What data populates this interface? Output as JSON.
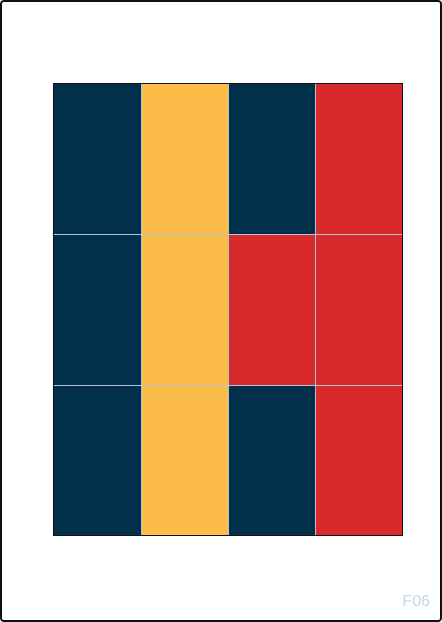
{
  "label": "F06",
  "colors": {
    "navy": "#02304a",
    "yellow": "#fbbd48",
    "red": "#d82a2a",
    "grid_line": "#b7c3d8"
  },
  "grid": {
    "rows": 3,
    "cols": 4,
    "cells": [
      [
        "navy",
        "yellow",
        "navy",
        "red"
      ],
      [
        "navy",
        "yellow",
        "red",
        "red"
      ],
      [
        "navy",
        "yellow",
        "navy",
        "red"
      ]
    ]
  }
}
